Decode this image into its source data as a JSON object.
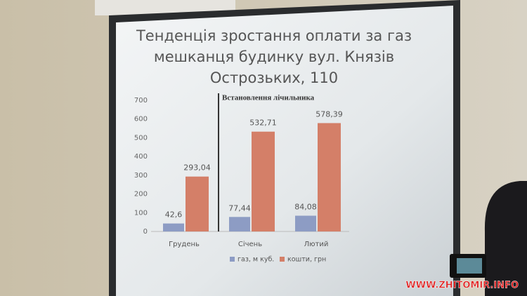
{
  "chart_data": {
    "type": "bar",
    "title": [
      "Тенденція зростання оплати за газ",
      "мешканця будинку вул. Князів",
      "Острозьких, 110"
    ],
    "annotations": [
      "Встановлення лічильника"
    ],
    "categories": [
      "Грудень",
      "Січень",
      "Лютий"
    ],
    "series": [
      {
        "name": "газ, м куб.",
        "color": "#8d9cc4",
        "values": [
          42.6,
          77.44,
          84.08
        ],
        "value_labels": [
          "42,6",
          "77,44",
          "84,08"
        ]
      },
      {
        "name": "кошти, грн",
        "color": "#d47f68",
        "values": [
          293.04,
          532.71,
          578.39
        ],
        "value_labels": [
          "293,04",
          "532,71",
          "578,39"
        ]
      }
    ],
    "ylim": [
      0,
      700
    ],
    "yticks": [
      0,
      100,
      200,
      300,
      400,
      500,
      600,
      700
    ],
    "grid": false
  },
  "watermark": "WWW.ZHITOMIR.INFO"
}
